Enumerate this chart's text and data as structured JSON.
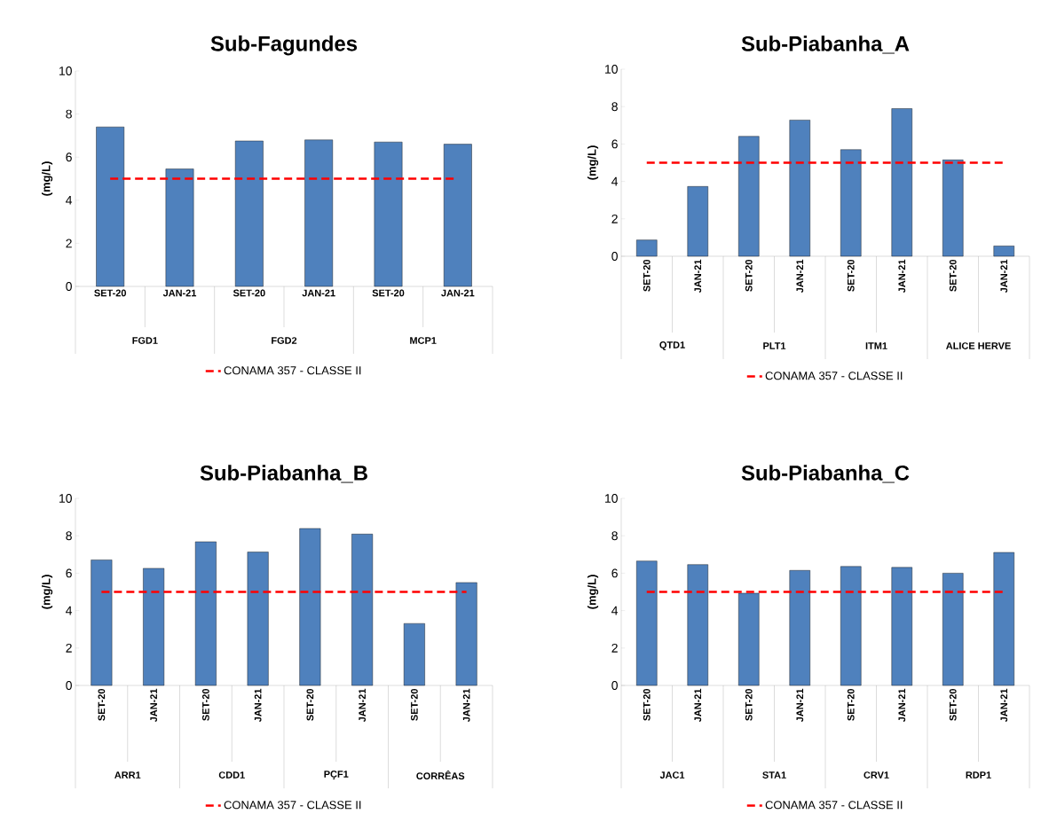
{
  "chart_data": [
    {
      "type": "bar",
      "title": "Sub-Fagundes",
      "ylabel": "(mg/L)",
      "categories": [
        "SET-20",
        "JAN-21",
        "SET-20",
        "JAN-21",
        "SET-20",
        "JAN-21"
      ],
      "annotations": [
        "FGD1",
        "FGD2",
        "MCP1"
      ],
      "values": [
        7.4,
        5.45,
        6.75,
        6.8,
        6.7,
        6.6
      ],
      "color": "#4f81bd",
      "ylim": [
        0,
        10
      ],
      "yticks": [
        0,
        2,
        4,
        6,
        8,
        10
      ],
      "ref_lines": [
        {
          "axis": "y",
          "value": 5,
          "label": "CONAMA 357 - CLASSE II",
          "color": "#ff0000",
          "line_style": "dashed"
        }
      ],
      "legend": "bottom"
    },
    {
      "type": "bar",
      "title": "Sub-Piabanha_A",
      "ylabel": "(mg/L)",
      "categories": [
        "SET-20",
        "JAN-21",
        "SET-20",
        "JAN-21",
        "SET-20",
        "JAN-21",
        "SET-20",
        "JAN-21"
      ],
      "annotations": [
        "QTD1",
        "PLT1",
        "ITM1",
        "ALICE HERVE"
      ],
      "values": [
        0.87,
        3.73,
        6.41,
        7.28,
        5.7,
        7.89,
        5.15,
        0.55
      ],
      "color": "#4f81bd",
      "ylim": [
        0,
        10
      ],
      "yticks": [
        0,
        2,
        4,
        6,
        8,
        10
      ],
      "ref_lines": [
        {
          "axis": "y",
          "value": 5,
          "label": "CONAMA 357 - CLASSE II",
          "color": "#ff0000",
          "line_style": "dashed"
        }
      ],
      "legend": "bottom"
    },
    {
      "type": "bar",
      "title": "Sub-Piabanha_B",
      "ylabel": "(mg/L)",
      "categories": [
        "SET-20",
        "JAN-21",
        "SET-20",
        "JAN-21",
        "SET-20",
        "JAN-21",
        "SET-20",
        "JAN-21"
      ],
      "annotations": [
        "ARR1",
        "CDD1",
        "PÇF1",
        "CORRÊAS"
      ],
      "values": [
        6.71,
        6.26,
        7.68,
        7.13,
        8.39,
        8.09,
        3.31,
        5.5
      ],
      "color": "#4f81bd",
      "ylim": [
        0,
        10
      ],
      "yticks": [
        0,
        2,
        4,
        6,
        8,
        10
      ],
      "ref_lines": [
        {
          "axis": "y",
          "value": 5,
          "label": "CONAMA 357 - CLASSE II",
          "color": "#ff0000",
          "line_style": "dashed"
        }
      ],
      "legend": "bottom"
    },
    {
      "type": "bar",
      "title": "Sub-Piabanha_C",
      "ylabel": "(mg/L)",
      "categories": [
        "SET-20",
        "JAN-21",
        "SET-20",
        "JAN-21",
        "SET-20",
        "JAN-21",
        "SET-20",
        "JAN-21"
      ],
      "annotations": [
        "JAC1",
        "STA1",
        "CRV1",
        "RDP1"
      ],
      "values": [
        6.65,
        6.46,
        4.93,
        6.15,
        6.36,
        6.31,
        6.0,
        7.11
      ],
      "color": "#4f81bd",
      "ylim": [
        0,
        10
      ],
      "yticks": [
        0,
        2,
        4,
        6,
        8,
        10
      ],
      "ref_lines": [
        {
          "axis": "y",
          "value": 5,
          "label": "CONAMA 357 - CLASSE II",
          "color": "#ff0000",
          "line_style": "dashed"
        }
      ],
      "legend": "bottom"
    }
  ]
}
